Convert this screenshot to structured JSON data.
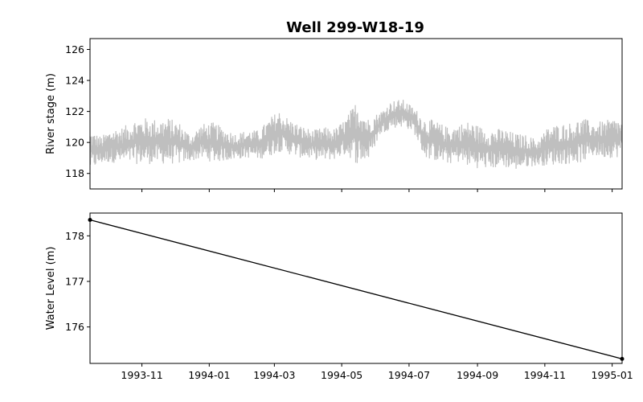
{
  "chart_data": {
    "title": "Well 299-W18-19",
    "x_range": [
      "1993-09-15",
      "1995-01-10"
    ],
    "x_ticks": [
      "1993-11",
      "1994-01",
      "1994-03",
      "1994-05",
      "1994-07",
      "1994-09",
      "1994-11",
      "1995-01"
    ],
    "panels": [
      {
        "type": "line",
        "ylabel": "River stage (m)",
        "ylim": [
          117,
          126.7
        ],
        "yticks": [
          118,
          120,
          122,
          124,
          126
        ],
        "color": "#bfbfbf",
        "series": [
          {
            "x": [
              "1993-09-15",
              "1993-09-25",
              "1993-10-05",
              "1993-10-15",
              "1993-10-25",
              "1993-11-05",
              "1993-11-15",
              "1993-11-25",
              "1993-12-05",
              "1993-12-15",
              "1993-12-25",
              "1994-01-05",
              "1994-01-15",
              "1994-01-25",
              "1994-02-05",
              "1994-02-15",
              "1994-02-25",
              "1994-03-05",
              "1994-03-15",
              "1994-03-25",
              "1994-04-05",
              "1994-04-15",
              "1994-04-25",
              "1994-05-05",
              "1994-05-15",
              "1994-05-25",
              "1994-06-05",
              "1994-06-15",
              "1994-06-25",
              "1994-07-05",
              "1994-07-15",
              "1994-07-25",
              "1994-08-05",
              "1994-08-15",
              "1994-08-25",
              "1994-09-05",
              "1994-09-15",
              "1994-09-25",
              "1994-10-05",
              "1994-10-15",
              "1994-10-25",
              "1994-11-05",
              "1994-11-15",
              "1994-11-25",
              "1994-12-05",
              "1994-12-15",
              "1994-12-25",
              "1995-01-05",
              "1995-01-10"
            ],
            "low": [
              118.2,
              118.6,
              118.7,
              118.6,
              118.6,
              118.6,
              118.6,
              118.6,
              118.6,
              118.8,
              118.9,
              118.7,
              118.8,
              118.9,
              119.0,
              118.9,
              119.1,
              119.4,
              119.2,
              119.0,
              118.9,
              118.8,
              118.9,
              119.2,
              118.6,
              118.8,
              120.5,
              120.9,
              121.0,
              120.7,
              119.0,
              118.8,
              118.6,
              118.7,
              118.4,
              118.3,
              118.3,
              118.4,
              118.2,
              118.4,
              118.5,
              118.5,
              118.6,
              118.6,
              118.7,
              119.1,
              119.0,
              119.0,
              119.3
            ],
            "high": [
              120.8,
              120.4,
              120.9,
              121.0,
              121.5,
              121.6,
              121.5,
              121.6,
              121.3,
              120.5,
              121.2,
              121.3,
              120.9,
              120.6,
              120.8,
              120.8,
              121.6,
              122.1,
              121.5,
              121.1,
              120.8,
              121.0,
              120.9,
              121.6,
              122.8,
              121.6,
              122.0,
              122.7,
              122.8,
              122.3,
              121.6,
              121.4,
              121.0,
              121.2,
              121.4,
              121.0,
              120.9,
              120.9,
              120.6,
              120.5,
              120.2,
              121.1,
              121.2,
              121.3,
              121.6,
              121.3,
              121.4,
              121.6,
              121.3
            ]
          }
        ]
      },
      {
        "type": "line",
        "ylabel": "Water Level (m)",
        "ylim": [
          175.2,
          178.5
        ],
        "yticks": [
          176,
          177,
          178
        ],
        "color": "#000000",
        "series": [
          {
            "x": [
              "1993-09-15",
              "1995-01-10"
            ],
            "y": [
              178.35,
              175.3
            ],
            "markers": true
          }
        ]
      }
    ]
  }
}
